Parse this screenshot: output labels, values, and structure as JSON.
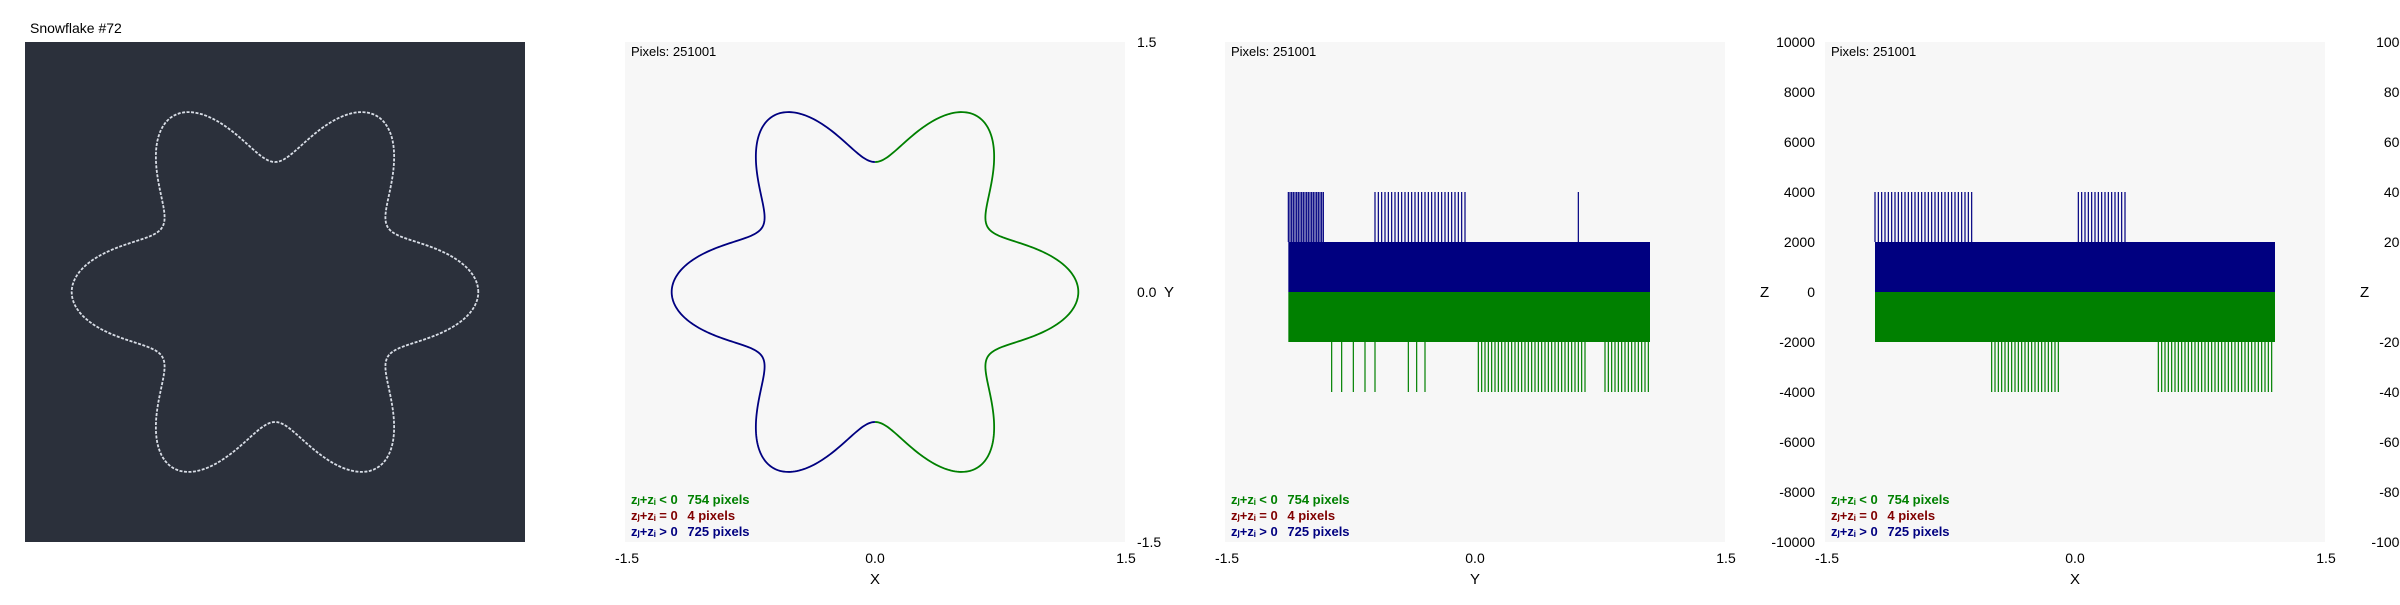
{
  "colors": {
    "dark_bg": "#2b303b",
    "plot_bg": "#f7f7f7",
    "neg": "#008000",
    "zero": "#800000",
    "pos": "#000080",
    "outline_light": "#d8dde6"
  },
  "chart_data": [
    {
      "type": "image",
      "title": "Snowflake #72",
      "shape": {
        "kind": "six-lobed closed curve",
        "base_radius": 1.0,
        "lobe_amplitude": 0.22,
        "lobes": 6
      }
    },
    {
      "type": "scatter",
      "info": "Pixels: 251001",
      "xlabel": "X",
      "ylabel": "Y",
      "xlim": [
        -1.5,
        1.5
      ],
      "ylim": [
        -1.5,
        1.5
      ],
      "xticks": [
        "-1.5",
        "0.0",
        "1.5"
      ],
      "yticks": [
        "1.5",
        "0.0",
        "-1.5"
      ],
      "shape": {
        "kind": "six-lobed closed curve",
        "base_radius": 1.0,
        "lobe_amplitude": 0.22,
        "lobes": 6
      },
      "legend": [
        {
          "name": "zⱼ+zᵢ < 0",
          "count": "754 pixels",
          "color": "#008000"
        },
        {
          "name": "zⱼ+zᵢ = 0",
          "count": "4 pixels",
          "color": "#800000"
        },
        {
          "name": "zⱼ+zᵢ > 0",
          "count": "725 pixels",
          "color": "#000080"
        }
      ]
    },
    {
      "type": "bar",
      "info": "Pixels: 251001",
      "xlabel": "Y",
      "ylabel": "Z",
      "xlim": [
        -1.5,
        1.5
      ],
      "ylim": [
        -10000,
        10000
      ],
      "xticks": [
        "-1.5",
        "0.0",
        "1.5"
      ],
      "yticks": [
        "10000",
        "8000",
        "6000",
        "4000",
        "2000",
        "0",
        "-2000",
        "-4000",
        "-6000",
        "-8000",
        "-10000"
      ],
      "x_range": [
        -1.12,
        1.05
      ],
      "band_pos": 2000,
      "band_neg": -2000,
      "spikes_pos": [
        -1.12,
        -1.11,
        -1.1,
        -1.09,
        -1.08,
        -1.07,
        -1.06,
        -1.05,
        -1.04,
        -1.03,
        -1.02,
        -1.01,
        -1.0,
        -0.99,
        -0.98,
        -0.97,
        -0.96,
        -0.95,
        -0.94,
        -0.93,
        -0.92,
        -0.91,
        -0.6,
        -0.58,
        -0.56,
        -0.54,
        -0.52,
        -0.5,
        -0.48,
        -0.46,
        -0.44,
        -0.42,
        -0.4,
        -0.38,
        -0.36,
        -0.34,
        -0.32,
        -0.3,
        -0.28,
        -0.26,
        -0.24,
        -0.22,
        -0.2,
        -0.18,
        -0.16,
        -0.14,
        -0.12,
        -0.1,
        -0.08,
        -0.06,
        0.62
      ],
      "spikes_neg": [
        -0.86,
        -0.8,
        -0.73,
        -0.66,
        -0.6,
        -0.4,
        -0.35,
        -0.3,
        0.02,
        0.04,
        0.06,
        0.08,
        0.1,
        0.12,
        0.14,
        0.16,
        0.18,
        0.2,
        0.22,
        0.24,
        0.26,
        0.28,
        0.3,
        0.32,
        0.34,
        0.36,
        0.38,
        0.4,
        0.42,
        0.44,
        0.46,
        0.48,
        0.5,
        0.52,
        0.54,
        0.56,
        0.58,
        0.6,
        0.62,
        0.64,
        0.66,
        0.78,
        0.8,
        0.82,
        0.84,
        0.86,
        0.88,
        0.9,
        0.92,
        0.94,
        0.96,
        0.98,
        1.0,
        1.02,
        1.04
      ],
      "legend": [
        {
          "name": "zⱼ+zᵢ < 0",
          "count": "754 pixels",
          "color": "#008000"
        },
        {
          "name": "zⱼ+zᵢ = 0",
          "count": "4 pixels",
          "color": "#800000"
        },
        {
          "name": "zⱼ+zᵢ > 0",
          "count": "725 pixels",
          "color": "#000080"
        }
      ]
    },
    {
      "type": "bar",
      "info": "Pixels: 251001",
      "xlabel": "X",
      "ylabel": "Z",
      "xlim": [
        -1.5,
        1.5
      ],
      "ylim": [
        -10000,
        10000
      ],
      "xticks": [
        "-1.5",
        "0.0",
        "1.5"
      ],
      "yticks": [
        "10000",
        "8000",
        "6000",
        "4000",
        "2000",
        "0",
        "-2000",
        "-4000",
        "-6000",
        "-8000",
        "-10000"
      ],
      "x_range": [
        -1.2,
        1.2
      ],
      "band_pos": 2000,
      "band_neg": -2000,
      "spikes_pos": [
        -1.2,
        -1.18,
        -1.16,
        -1.14,
        -1.12,
        -1.1,
        -1.08,
        -1.06,
        -1.04,
        -1.02,
        -1.0,
        -0.98,
        -0.96,
        -0.94,
        -0.92,
        -0.9,
        -0.88,
        -0.86,
        -0.84,
        -0.82,
        -0.8,
        -0.78,
        -0.76,
        -0.74,
        -0.72,
        -0.7,
        -0.68,
        -0.66,
        -0.64,
        -0.62,
        0.02,
        0.04,
        0.06,
        0.08,
        0.1,
        0.12,
        0.14,
        0.16,
        0.18,
        0.2,
        0.22,
        0.24,
        0.26,
        0.28,
        0.3
      ],
      "spikes_neg": [
        -0.5,
        -0.48,
        -0.46,
        -0.44,
        -0.42,
        -0.4,
        -0.38,
        -0.36,
        -0.34,
        -0.32,
        -0.3,
        -0.28,
        -0.26,
        -0.24,
        -0.22,
        -0.2,
        -0.18,
        -0.16,
        -0.14,
        -0.12,
        -0.1,
        0.5,
        0.52,
        0.54,
        0.56,
        0.58,
        0.6,
        0.62,
        0.64,
        0.66,
        0.68,
        0.7,
        0.72,
        0.74,
        0.76,
        0.78,
        0.8,
        0.82,
        0.84,
        0.86,
        0.88,
        0.9,
        0.92,
        0.94,
        0.96,
        0.98,
        1.0,
        1.02,
        1.04,
        1.06,
        1.08,
        1.1,
        1.12,
        1.14,
        1.16,
        1.18
      ],
      "legend": [
        {
          "name": "zⱼ+zᵢ < 0",
          "count": "754 pixels",
          "color": "#008000"
        },
        {
          "name": "zⱼ+zᵢ = 0",
          "count": "4 pixels",
          "color": "#800000"
        },
        {
          "name": "zⱼ+zᵢ > 0",
          "count": "725 pixels",
          "color": "#000080"
        }
      ]
    }
  ]
}
